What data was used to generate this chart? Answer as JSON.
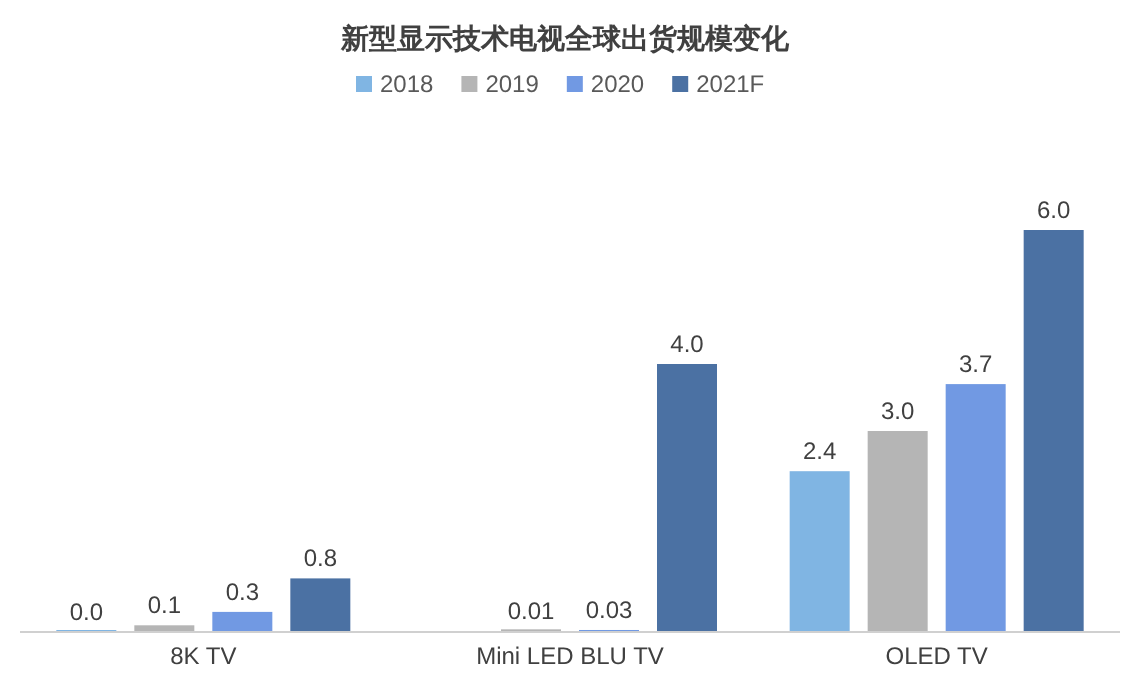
{
  "chart_data": {
    "type": "bar",
    "title": "新型显示技术电视全球出货规模变化",
    "categories": [
      "8K TV",
      "Mini LED BLU TV",
      "OLED TV"
    ],
    "series": [
      {
        "name": "2018",
        "color": "#80b5e3",
        "values": [
          0.0,
          null,
          2.4
        ],
        "value_labels": [
          "0.0",
          null,
          "2.4"
        ]
      },
      {
        "name": "2019",
        "color": "#b5b5b5",
        "values": [
          0.1,
          0.01,
          3.0
        ],
        "value_labels": [
          "0.1",
          "0.01",
          "3.0"
        ]
      },
      {
        "name": "2020",
        "color": "#7199e3",
        "values": [
          0.3,
          0.03,
          3.7
        ],
        "value_labels": [
          "0.3",
          "0.03",
          "3.7"
        ]
      },
      {
        "name": "2021F",
        "color": "#4b71a3",
        "values": [
          0.8,
          4.0,
          6.0
        ],
        "value_labels": [
          "0.8",
          "4.0",
          "6.0"
        ]
      }
    ],
    "legend": "top",
    "tick_labels": "x"
  }
}
